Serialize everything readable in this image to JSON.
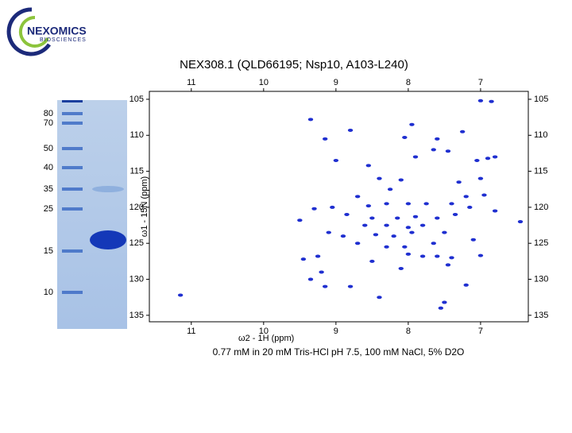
{
  "logo": {
    "name": "NEXOMICS",
    "sub": "BIOSCIENCES"
  },
  "gel": {
    "markers": [
      "80",
      "70",
      "50",
      "40",
      "35",
      "25",
      "15",
      "10"
    ]
  },
  "caption": "0.77 mM in 20 mM Tris-HCl pH 7.5, 100 mM NaCl, 5% D2O",
  "chart_data": {
    "type": "scatter",
    "title": "NEX308.1 (QLD66195; Nsp10, A103-L240)",
    "x_label": "ω2 - 1H  (ppm)",
    "y_label": "ω1 - 15N  (ppm)",
    "color": "#1f2fd0",
    "xlim": [
      11.58,
      6.34
    ],
    "ylim": [
      135.9,
      103.9
    ],
    "xticks": [
      11,
      10,
      9,
      8,
      7
    ],
    "yticks": [
      105,
      110,
      115,
      120,
      125,
      130,
      135
    ],
    "x": [
      9.35,
      8.8,
      7.95,
      9.15,
      8.05,
      7.6,
      7.25,
      7.0,
      6.85,
      7.65,
      7.45,
      7.05,
      6.9,
      6.8,
      8.55,
      9.0,
      7.9,
      8.4,
      8.1,
      7.3,
      7.0,
      8.25,
      7.2,
      6.95,
      8.7,
      9.05,
      8.55,
      8.3,
      8.0,
      7.75,
      7.4,
      7.15,
      6.8,
      9.3,
      8.85,
      8.5,
      8.15,
      7.9,
      7.6,
      7.35,
      9.5,
      8.6,
      8.3,
      8.0,
      7.8,
      6.45,
      8.45,
      8.2,
      7.95,
      8.9,
      7.5,
      9.1,
      8.7,
      8.3,
      8.05,
      7.65,
      7.1,
      8.0,
      7.8,
      7.6,
      7.0,
      9.45,
      9.25,
      8.5,
      7.4,
      9.2,
      8.1,
      7.45,
      9.35,
      9.15,
      8.8,
      7.2,
      8.4,
      7.5,
      11.15,
      7.55
    ],
    "y": [
      107.8,
      109.3,
      108.5,
      110.5,
      110.3,
      110.5,
      109.5,
      105.2,
      105.3,
      112.0,
      112.2,
      113.5,
      113.2,
      113.0,
      114.2,
      113.5,
      113.0,
      116.0,
      116.2,
      116.5,
      116.0,
      117.5,
      118.5,
      118.3,
      118.5,
      120.0,
      119.8,
      119.5,
      119.5,
      119.5,
      119.5,
      120.0,
      120.5,
      120.2,
      121.0,
      121.5,
      121.5,
      121.3,
      121.5,
      121.0,
      121.8,
      122.5,
      122.5,
      122.8,
      122.5,
      122.0,
      123.8,
      124.0,
      123.5,
      124.0,
      123.5,
      123.5,
      125.0,
      125.5,
      125.5,
      125.0,
      124.5,
      126.5,
      126.8,
      126.8,
      126.7,
      127.2,
      126.8,
      127.5,
      127.0,
      129.0,
      128.5,
      128.0,
      130.0,
      131.0,
      131.0,
      130.8,
      132.5,
      133.2,
      132.2,
      134.0
    ]
  }
}
